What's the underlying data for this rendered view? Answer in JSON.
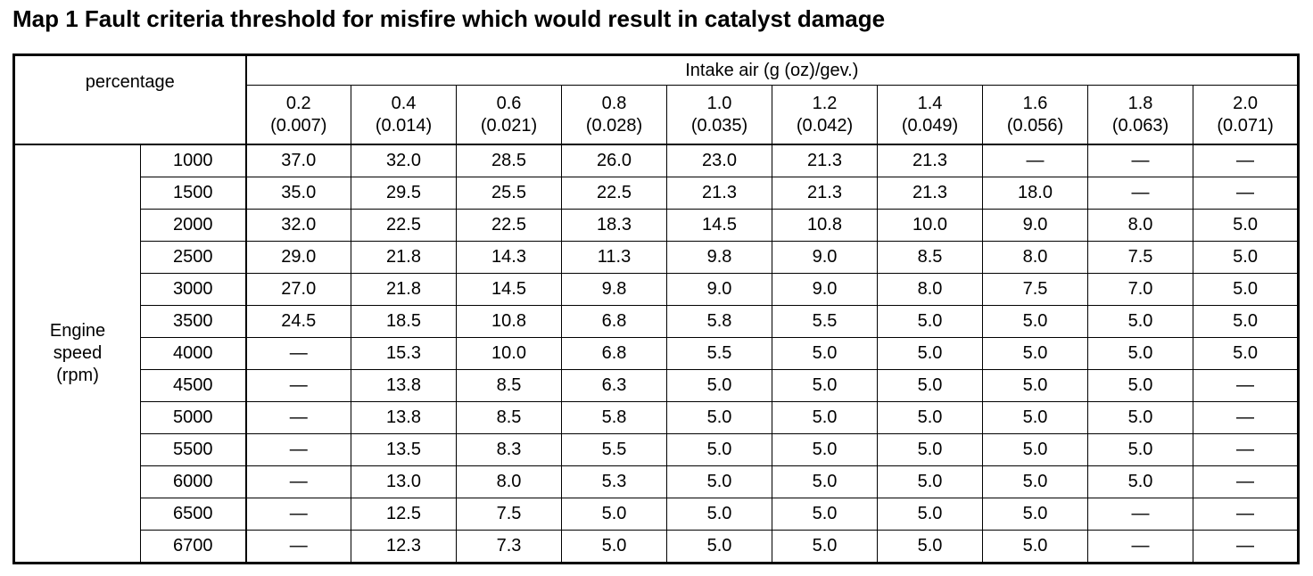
{
  "title": "Map 1 Fault criteria threshold for misfire which would result in catalyst damage",
  "corner_label": "percentage",
  "column_group_label": "Intake air (g (oz)/gev.)",
  "row_group_label": [
    "Engine",
    "speed",
    "(rpm)"
  ],
  "columns": [
    {
      "g": "0.2",
      "oz": "(0.007)"
    },
    {
      "g": "0.4",
      "oz": "(0.014)"
    },
    {
      "g": "0.6",
      "oz": "(0.021)"
    },
    {
      "g": "0.8",
      "oz": "(0.028)"
    },
    {
      "g": "1.0",
      "oz": "(0.035)"
    },
    {
      "g": "1.2",
      "oz": "(0.042)"
    },
    {
      "g": "1.4",
      "oz": "(0.049)"
    },
    {
      "g": "1.6",
      "oz": "(0.056)"
    },
    {
      "g": "1.8",
      "oz": "(0.063)"
    },
    {
      "g": "2.0",
      "oz": "(0.071)"
    }
  ],
  "rows": [
    {
      "rpm": "1000",
      "values": [
        "37.0",
        "32.0",
        "28.5",
        "26.0",
        "23.0",
        "21.3",
        "21.3",
        "—",
        "—",
        "—"
      ]
    },
    {
      "rpm": "1500",
      "values": [
        "35.0",
        "29.5",
        "25.5",
        "22.5",
        "21.3",
        "21.3",
        "21.3",
        "18.0",
        "—",
        "—"
      ]
    },
    {
      "rpm": "2000",
      "values": [
        "32.0",
        "22.5",
        "22.5",
        "18.3",
        "14.5",
        "10.8",
        "10.0",
        "9.0",
        "8.0",
        "5.0"
      ]
    },
    {
      "rpm": "2500",
      "values": [
        "29.0",
        "21.8",
        "14.3",
        "11.3",
        "9.8",
        "9.0",
        "8.5",
        "8.0",
        "7.5",
        "5.0"
      ]
    },
    {
      "rpm": "3000",
      "values": [
        "27.0",
        "21.8",
        "14.5",
        "9.8",
        "9.0",
        "9.0",
        "8.0",
        "7.5",
        "7.0",
        "5.0"
      ]
    },
    {
      "rpm": "3500",
      "values": [
        "24.5",
        "18.5",
        "10.8",
        "6.8",
        "5.8",
        "5.5",
        "5.0",
        "5.0",
        "5.0",
        "5.0"
      ]
    },
    {
      "rpm": "4000",
      "values": [
        "—",
        "15.3",
        "10.0",
        "6.8",
        "5.5",
        "5.0",
        "5.0",
        "5.0",
        "5.0",
        "5.0"
      ]
    },
    {
      "rpm": "4500",
      "values": [
        "—",
        "13.8",
        "8.5",
        "6.3",
        "5.0",
        "5.0",
        "5.0",
        "5.0",
        "5.0",
        "—"
      ]
    },
    {
      "rpm": "5000",
      "values": [
        "—",
        "13.8",
        "8.5",
        "5.8",
        "5.0",
        "5.0",
        "5.0",
        "5.0",
        "5.0",
        "—"
      ]
    },
    {
      "rpm": "5500",
      "values": [
        "—",
        "13.5",
        "8.3",
        "5.5",
        "5.0",
        "5.0",
        "5.0",
        "5.0",
        "5.0",
        "—"
      ]
    },
    {
      "rpm": "6000",
      "values": [
        "—",
        "13.0",
        "8.0",
        "5.3",
        "5.0",
        "5.0",
        "5.0",
        "5.0",
        "5.0",
        "—"
      ]
    },
    {
      "rpm": "6500",
      "values": [
        "—",
        "12.5",
        "7.5",
        "5.0",
        "5.0",
        "5.0",
        "5.0",
        "5.0",
        "—",
        "—"
      ]
    },
    {
      "rpm": "6700",
      "values": [
        "—",
        "12.3",
        "7.3",
        "5.0",
        "5.0",
        "5.0",
        "5.0",
        "5.0",
        "—",
        "—"
      ]
    }
  ]
}
